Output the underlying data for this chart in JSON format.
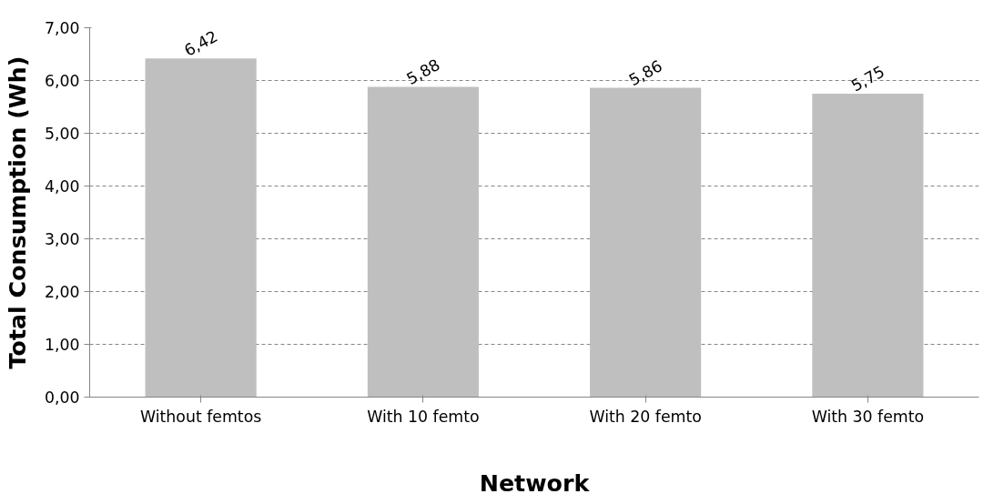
{
  "chart_data": {
    "type": "bar",
    "xlabel": "Network",
    "ylabel": "Total Consumption (Wh)",
    "categories": [
      "Without femtos",
      "With 10 femto",
      "With 20 femto",
      "With 30 femto"
    ],
    "values": [
      6.42,
      5.88,
      5.86,
      5.75
    ],
    "color": "#bfbfbf",
    "value_labels": [
      "6,42",
      "5,88",
      "5,86",
      "5,75"
    ],
    "ylim": [
      0,
      7
    ],
    "yticks": [
      {
        "value": 0,
        "label": "0,00"
      },
      {
        "value": 1,
        "label": "1,00"
      },
      {
        "value": 2,
        "label": "2,00"
      },
      {
        "value": 3,
        "label": "3,00"
      },
      {
        "value": 4,
        "label": "4,00"
      },
      {
        "value": 5,
        "label": "5,00"
      },
      {
        "value": 6,
        "label": "6,00"
      },
      {
        "value": 7,
        "label": "7,00"
      }
    ],
    "grid": "y"
  }
}
